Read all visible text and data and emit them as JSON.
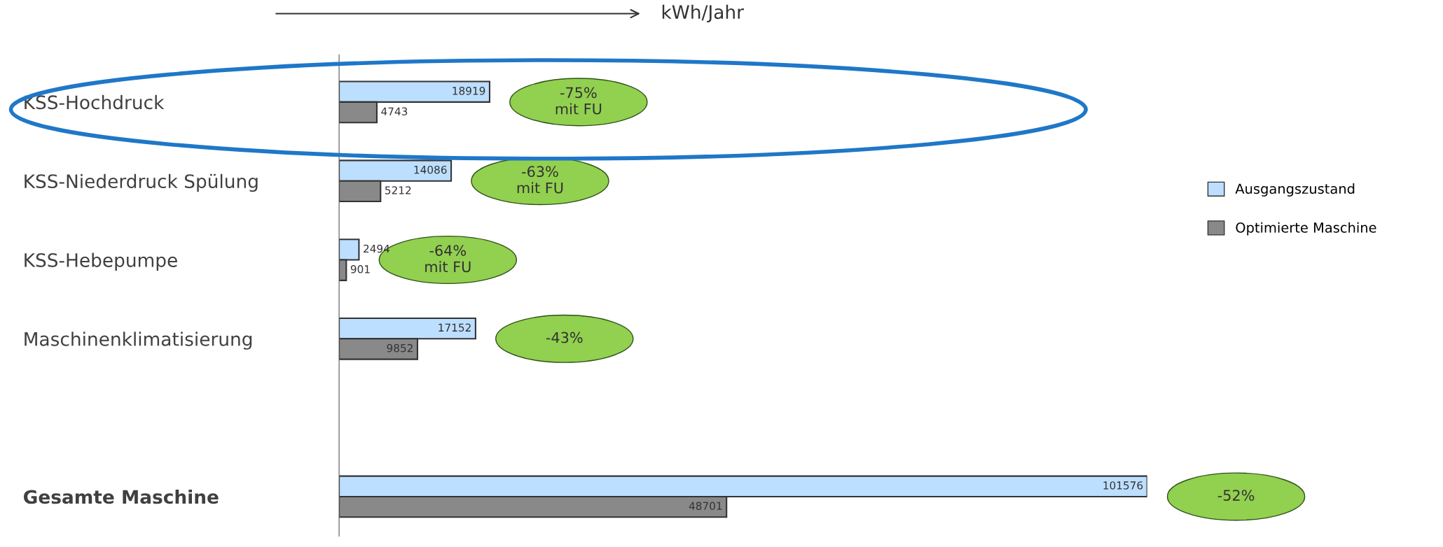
{
  "chart_data": {
    "type": "bar",
    "orientation": "horizontal",
    "xlabel": "kWh/Jahr",
    "categories": [
      "KSS-Hochdruck",
      "KSS-Niederdruck Spülung",
      "KSS-Hebepumpe",
      "Maschinenklimatisierung",
      null,
      "Gesamte Maschine"
    ],
    "series": [
      {
        "name": "Ausgangszustand",
        "color": "#bddfff",
        "values": [
          18919,
          14086,
          2494,
          17152,
          null,
          101576
        ]
      },
      {
        "name": "Optimierte Maschine",
        "color": "#898989",
        "values": [
          4743,
          5212,
          901,
          9852,
          null,
          48701
        ]
      }
    ],
    "data_labels": true,
    "legend": "right",
    "grid": false,
    "annotations": [
      "-75%\nmit FU",
      "-63%\nmit FU",
      "-64%\nmit FU",
      "-43%",
      "-52%"
    ]
  }
}
